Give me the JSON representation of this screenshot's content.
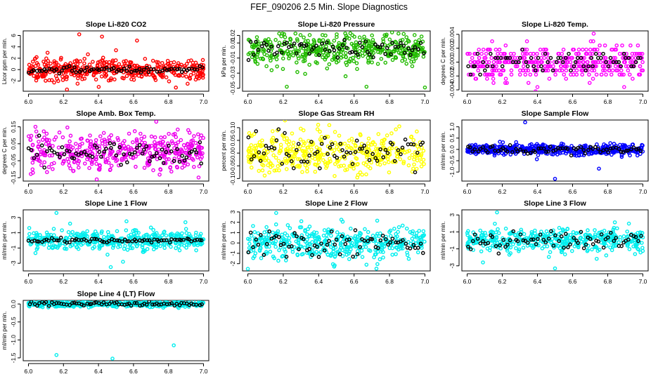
{
  "figure": {
    "title": "FEF_090206  2.5 Min. Slope Diagnostics",
    "background": "#ffffff"
  },
  "chart_data": [
    {
      "type": "scatter",
      "title": "Slope Li-820 CO2",
      "ylabel": "Licor ppm per min.",
      "color": "#ff0000",
      "xlim": [
        5.97,
        7.03
      ],
      "ylim": [
        -3.8,
        6.8
      ],
      "xticks": [
        6.0,
        6.2,
        6.4,
        6.6,
        6.8,
        7.0
      ],
      "yticks": [
        -2,
        0,
        2,
        4,
        6
      ],
      "ytick_labels": [
        "-2",
        "0",
        "2",
        "4",
        "6"
      ],
      "center": 0,
      "spread": 0.9,
      "black_spread": 0.25,
      "outliers": [
        [
          6.29,
          6.2
        ],
        [
          6.42,
          5.8
        ],
        [
          6.22,
          -3.5
        ],
        [
          6.5,
          3.4
        ],
        [
          6.62,
          5.1
        ],
        [
          6.17,
          -2.0
        ]
      ]
    },
    {
      "type": "scatter",
      "title": "Slope Li-820 Pressure",
      "ylabel": "kPa per min.",
      "color": "#22bb00",
      "xlim": [
        5.97,
        7.03
      ],
      "ylim": [
        -0.054,
        0.026
      ],
      "xticks": [
        6.0,
        6.2,
        6.4,
        6.6,
        6.8,
        7.0
      ],
      "yticks": [
        -0.05,
        -0.03,
        -0.01,
        0.01,
        0.02
      ],
      "ytick_labels": [
        "-0.05",
        "-0.03",
        "-0.01",
        "0.01",
        "0.02"
      ],
      "center": 0.002,
      "spread": 0.012,
      "black_spread": 0.006,
      "outliers": [
        [
          6.22,
          -0.048
        ],
        [
          6.67,
          -0.048
        ],
        [
          7.0,
          -0.049
        ],
        [
          6.88,
          0.022
        ]
      ]
    },
    {
      "type": "scatter",
      "title": "Slope Li-820 Temp.",
      "ylabel": "degrees C per min.",
      "color": "#ff00ff",
      "xlim": [
        5.97,
        7.03
      ],
      "ylim": [
        -0.0042,
        0.0045
      ],
      "xticks": [
        6.0,
        6.2,
        6.4,
        6.6,
        6.8,
        7.0
      ],
      "yticks": [
        -0.004,
        -0.002,
        0.0,
        0.002,
        0.004
      ],
      "ytick_labels": [
        "-0.004",
        "-0.002",
        "0.000",
        "0.002",
        "0.004"
      ],
      "center": 0.0,
      "spread": 0.0012,
      "black_spread": 0.0008,
      "quantize": 0.0006,
      "outliers": [
        [
          6.72,
          0.0041
        ],
        [
          6.4,
          -0.0036
        ],
        [
          6.15,
          -0.003
        ]
      ]
    },
    {
      "type": "scatter",
      "title": "Slope Amb. Box Temp.",
      "ylabel": "degrees C per min.",
      "color": "#ee00ee",
      "xlim": [
        5.97,
        7.03
      ],
      "ylim": [
        -0.17,
        0.19
      ],
      "xticks": [
        6.0,
        6.2,
        6.4,
        6.6,
        6.8,
        7.0
      ],
      "yticks": [
        -0.15,
        -0.05,
        0.05,
        0.15
      ],
      "ytick_labels": [
        "-0.15",
        "-0.05",
        "0.05",
        "0.15"
      ],
      "center": 0.0,
      "spread": 0.055,
      "black_spread": 0.03,
      "outliers": [
        [
          6.39,
          -0.16
        ],
        [
          6.73,
          0.18
        ],
        [
          6.04,
          0.15
        ]
      ]
    },
    {
      "type": "scatter",
      "title": "Slope Gas Stream RH",
      "ylabel": "percent per min.",
      "color": "#ffff00",
      "xlim": [
        5.97,
        7.03
      ],
      "ylim": [
        -0.11,
        0.13
      ],
      "xticks": [
        6.0,
        6.2,
        6.4,
        6.6,
        6.8,
        7.0
      ],
      "yticks": [
        -0.1,
        -0.05,
        0.0,
        0.05,
        0.1
      ],
      "ytick_labels": [
        "-0.10",
        "-0.05",
        "0.00",
        "0.05",
        "0.10"
      ],
      "center": 0.0,
      "spread": 0.04,
      "black_spread": 0.035,
      "outliers": [
        [
          6.46,
          0.11
        ],
        [
          6.49,
          -0.09
        ]
      ]
    },
    {
      "type": "scatter",
      "title": "Slope Sample Flow",
      "ylabel": "ml/min per min.",
      "color": "#0000ff",
      "xlim": [
        5.97,
        7.03
      ],
      "ylim": [
        -1.4,
        1.3
      ],
      "xticks": [
        6.0,
        6.2,
        6.4,
        6.6,
        6.8,
        7.0
      ],
      "yticks": [
        -1.0,
        -0.5,
        0.0,
        0.5,
        1.0
      ],
      "ytick_labels": [
        "-1.0",
        "-0.5",
        "0.0",
        "0.5",
        "1.0"
      ],
      "center": 0.0,
      "spread": 0.12,
      "black_spread": 0.1,
      "outliers": [
        [
          6.33,
          1.2
        ],
        [
          6.5,
          -1.3
        ],
        [
          6.75,
          -0.85
        ]
      ]
    },
    {
      "type": "scatter",
      "title": "Slope Line 1 Flow",
      "ylabel": "ml/min per min.",
      "color": "#00eeee",
      "xlim": [
        5.97,
        7.03
      ],
      "ylim": [
        -4.0,
        4.0
      ],
      "xticks": [
        6.0,
        6.2,
        6.4,
        6.6,
        6.8,
        7.0
      ],
      "yticks": [
        -3,
        -1,
        1,
        3
      ],
      "ytick_labels": [
        "-3",
        "-1",
        "1",
        "3"
      ],
      "center": 0.0,
      "spread": 0.6,
      "black_spread": 0.12,
      "outliers": [
        [
          6.16,
          3.6
        ],
        [
          6.56,
          2.5
        ],
        [
          6.47,
          -3.5
        ],
        [
          6.54,
          -2.8
        ]
      ]
    },
    {
      "type": "scatter",
      "title": "Slope Line 2 Flow",
      "ylabel": "ml/min per min.",
      "color": "#00eeee",
      "xlim": [
        5.97,
        7.03
      ],
      "ylim": [
        -2.7,
        3.2
      ],
      "xticks": [
        6.0,
        6.2,
        6.4,
        6.6,
        6.8,
        7.0
      ],
      "yticks": [
        -2,
        -1,
        0,
        1,
        2,
        3
      ],
      "ytick_labels": [
        "-2",
        "-1",
        "0",
        "1",
        "2",
        "3"
      ],
      "center": 0.0,
      "spread": 0.75,
      "black_spread": 0.7,
      "outliers": [
        [
          6.16,
          2.9
        ],
        [
          6.0,
          -2.5
        ],
        [
          6.67,
          -2.1
        ]
      ]
    },
    {
      "type": "scatter",
      "title": "Slope Line 3 Flow",
      "ylabel": "ml/min per min.",
      "color": "#00eeee",
      "xlim": [
        5.97,
        7.03
      ],
      "ylim": [
        -3.6,
        3.6
      ],
      "xticks": [
        6.0,
        6.2,
        6.4,
        6.6,
        6.8,
        7.0
      ],
      "yticks": [
        -3,
        -1,
        1,
        3
      ],
      "ytick_labels": [
        "-3",
        "-1",
        "1",
        "3"
      ],
      "center": 0.0,
      "spread": 0.7,
      "black_spread": 0.6,
      "outliers": [
        [
          6.17,
          3.3
        ],
        [
          6.5,
          -3.3
        ],
        [
          6.09,
          -2.6
        ]
      ]
    },
    {
      "type": "scatter",
      "title": "Slope Line 4 (LT) Flow",
      "ylabel": "ml/min per min.",
      "color": "#00eeee",
      "xlim": [
        5.97,
        7.03
      ],
      "ylim": [
        -1.58,
        0.1
      ],
      "xticks": [
        6.0,
        6.2,
        6.4,
        6.6,
        6.8,
        7.0
      ],
      "yticks": [
        -1.5,
        -1.0,
        -0.5,
        0.0
      ],
      "ytick_labels": [
        "-1.5",
        "-1.0",
        "-0.5",
        "0.0"
      ],
      "center": 0.0,
      "spread": 0.04,
      "black_spread": 0.03,
      "outliers": [
        [
          6.16,
          -1.42
        ],
        [
          6.48,
          -1.52
        ],
        [
          6.83,
          -1.15
        ]
      ]
    }
  ]
}
